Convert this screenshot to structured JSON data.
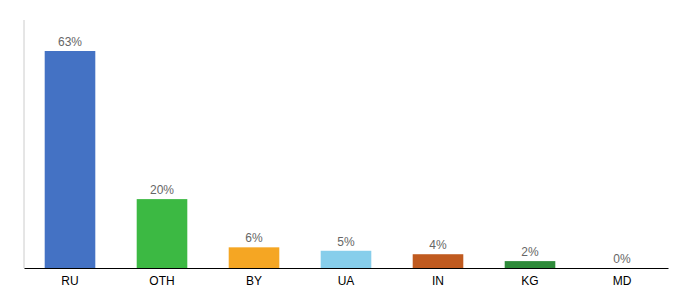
{
  "chart_data": {
    "type": "bar",
    "categories": [
      "RU",
      "OTH",
      "BY",
      "UA",
      "IN",
      "KG",
      "MD"
    ],
    "values": [
      63,
      20,
      6,
      5,
      4,
      2,
      0
    ],
    "value_labels": [
      "63%",
      "20%",
      "6%",
      "5%",
      "4%",
      "2%",
      "0%"
    ],
    "data_labels": true,
    "colors": [
      "#4472C4",
      "#3CB943",
      "#F5A623",
      "#87CEEB",
      "#C05A1F",
      "#2E8B3A",
      "#DDDDDD"
    ],
    "ylim": [
      0,
      72
    ],
    "tick_labels": "x"
  }
}
